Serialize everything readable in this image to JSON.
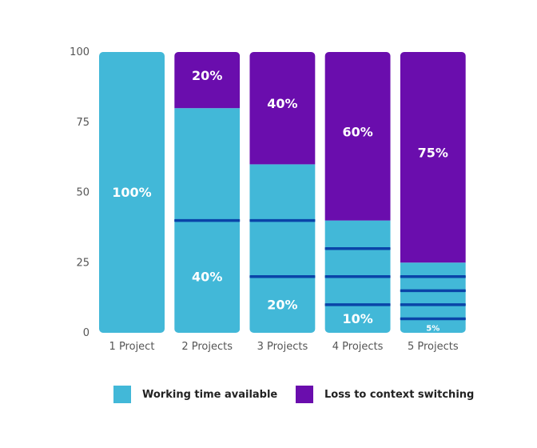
{
  "chart_data": {
    "type": "bar",
    "stacked": true,
    "categories": [
      "1 Project",
      "2 Projects",
      "3 Projects",
      "4 Projects",
      "5 Projects"
    ],
    "series": [
      {
        "name": "Working time available",
        "values": [
          100,
          80,
          60,
          40,
          25
        ],
        "color": "#42b8d8"
      },
      {
        "name": "Loss to context switching",
        "values": [
          0,
          20,
          40,
          60,
          75
        ],
        "color": "#6a0dad"
      }
    ],
    "working_labels": [
      "100%",
      "40%",
      "20%",
      "10%",
      "5%"
    ],
    "loss_labels": [
      "",
      "20%",
      "40%",
      "60%",
      "75%"
    ],
    "project_dividers": [
      [],
      [
        40
      ],
      [
        40,
        20
      ],
      [
        30,
        20,
        10
      ],
      [
        20,
        15,
        10,
        5
      ]
    ],
    "divider_color": "#0a44a8",
    "y_ticks": [
      "0",
      "25",
      "50",
      "75",
      "100"
    ],
    "ylim": [
      0,
      100
    ],
    "legend_position": "bottom"
  }
}
